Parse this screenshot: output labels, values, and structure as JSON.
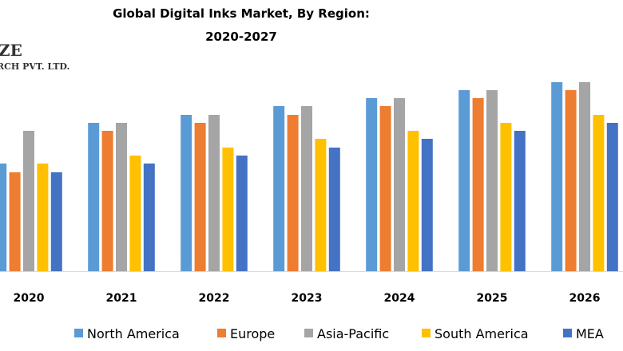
{
  "chart_data": {
    "type": "bar",
    "title": "Global Digital Inks Market, By Region:",
    "subtitle": "2020-2027",
    "xlabel": "",
    "ylabel": "",
    "categories": [
      "2020",
      "2021",
      "2022",
      "2023",
      "2024",
      "2025",
      "2026"
    ],
    "series": [
      {
        "name": "North America",
        "color": "#5B9BD5",
        "values": [
          135,
          186,
          196,
          207,
          217,
          227,
          237
        ]
      },
      {
        "name": "Europe",
        "color": "#ED7D31",
        "values": [
          124,
          176,
          186,
          196,
          207,
          217,
          227
        ]
      },
      {
        "name": "Asia-Pacific",
        "color": "#A5A5A5",
        "values": [
          176,
          186,
          196,
          207,
          217,
          227,
          237
        ]
      },
      {
        "name": "South America",
        "color": "#FFC000",
        "values": [
          135,
          145,
          155,
          166,
          176,
          186,
          196
        ]
      },
      {
        "name": "MEA",
        "color": "#4472C4",
        "values": [
          124,
          135,
          145,
          155,
          166,
          176,
          186
        ]
      }
    ],
    "ylim": [
      0,
      250
    ],
    "grid": false,
    "legend_position": "bottom"
  },
  "watermark": {
    "line1": "ZE",
    "line2": "RCH PVT. LTD."
  }
}
